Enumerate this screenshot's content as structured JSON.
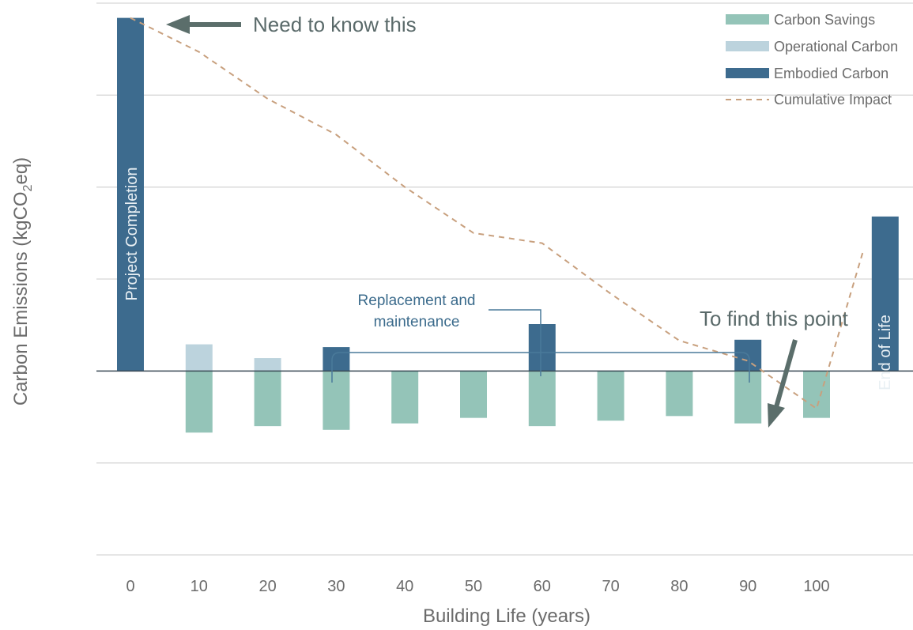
{
  "chart_data": {
    "type": "bar",
    "xlabel": "Building Life (years)",
    "ylabel_main": "Carbon Emissions (kgCO",
    "ylabel_sub": "2",
    "ylabel_tail": "eq)",
    "categories": [
      "0",
      "10",
      "20",
      "30",
      "40",
      "50",
      "60",
      "70",
      "80",
      "90",
      "100",
      ""
    ],
    "ylim": [
      -2,
      4
    ],
    "grid": true,
    "legend_position": "top-right",
    "series": [
      {
        "name": "Carbon Savings",
        "color": "#94c4b8",
        "values": [
          0,
          -0.67,
          -0.6,
          -0.64,
          -0.57,
          -0.51,
          -0.6,
          -0.54,
          -0.49,
          -0.57,
          -0.51,
          0
        ]
      },
      {
        "name": "Operational Carbon",
        "color": "#bcd3dd",
        "values": [
          0,
          0.29,
          0.14,
          0,
          0,
          0,
          0,
          0,
          0,
          0,
          0,
          0
        ]
      },
      {
        "name": "Embodied Carbon",
        "color": "#3d6b8e",
        "values": [
          3.84,
          0,
          0,
          0.26,
          0,
          0,
          0.51,
          0,
          0,
          0.34,
          0,
          1.68
        ]
      }
    ],
    "line_series": {
      "name": "Cumulative Impact",
      "color": "#c8a07e",
      "x_index": [
        0,
        1,
        2,
        3,
        4,
        5,
        6,
        7,
        8,
        9,
        10,
        11
      ],
      "values": [
        3.84,
        3.47,
        2.96,
        2.57,
        2.0,
        1.5,
        1.39,
        0.84,
        0.33,
        0.11,
        -0.41,
        1.3
      ]
    },
    "bar_labels": {
      "start": "Project Completion",
      "end": "End of Life"
    },
    "annotations": {
      "top_arrow": "Need to know this",
      "point_arrow": "To find this point",
      "bracket_line1": "Replacement and",
      "bracket_line2": "maintenance"
    }
  }
}
